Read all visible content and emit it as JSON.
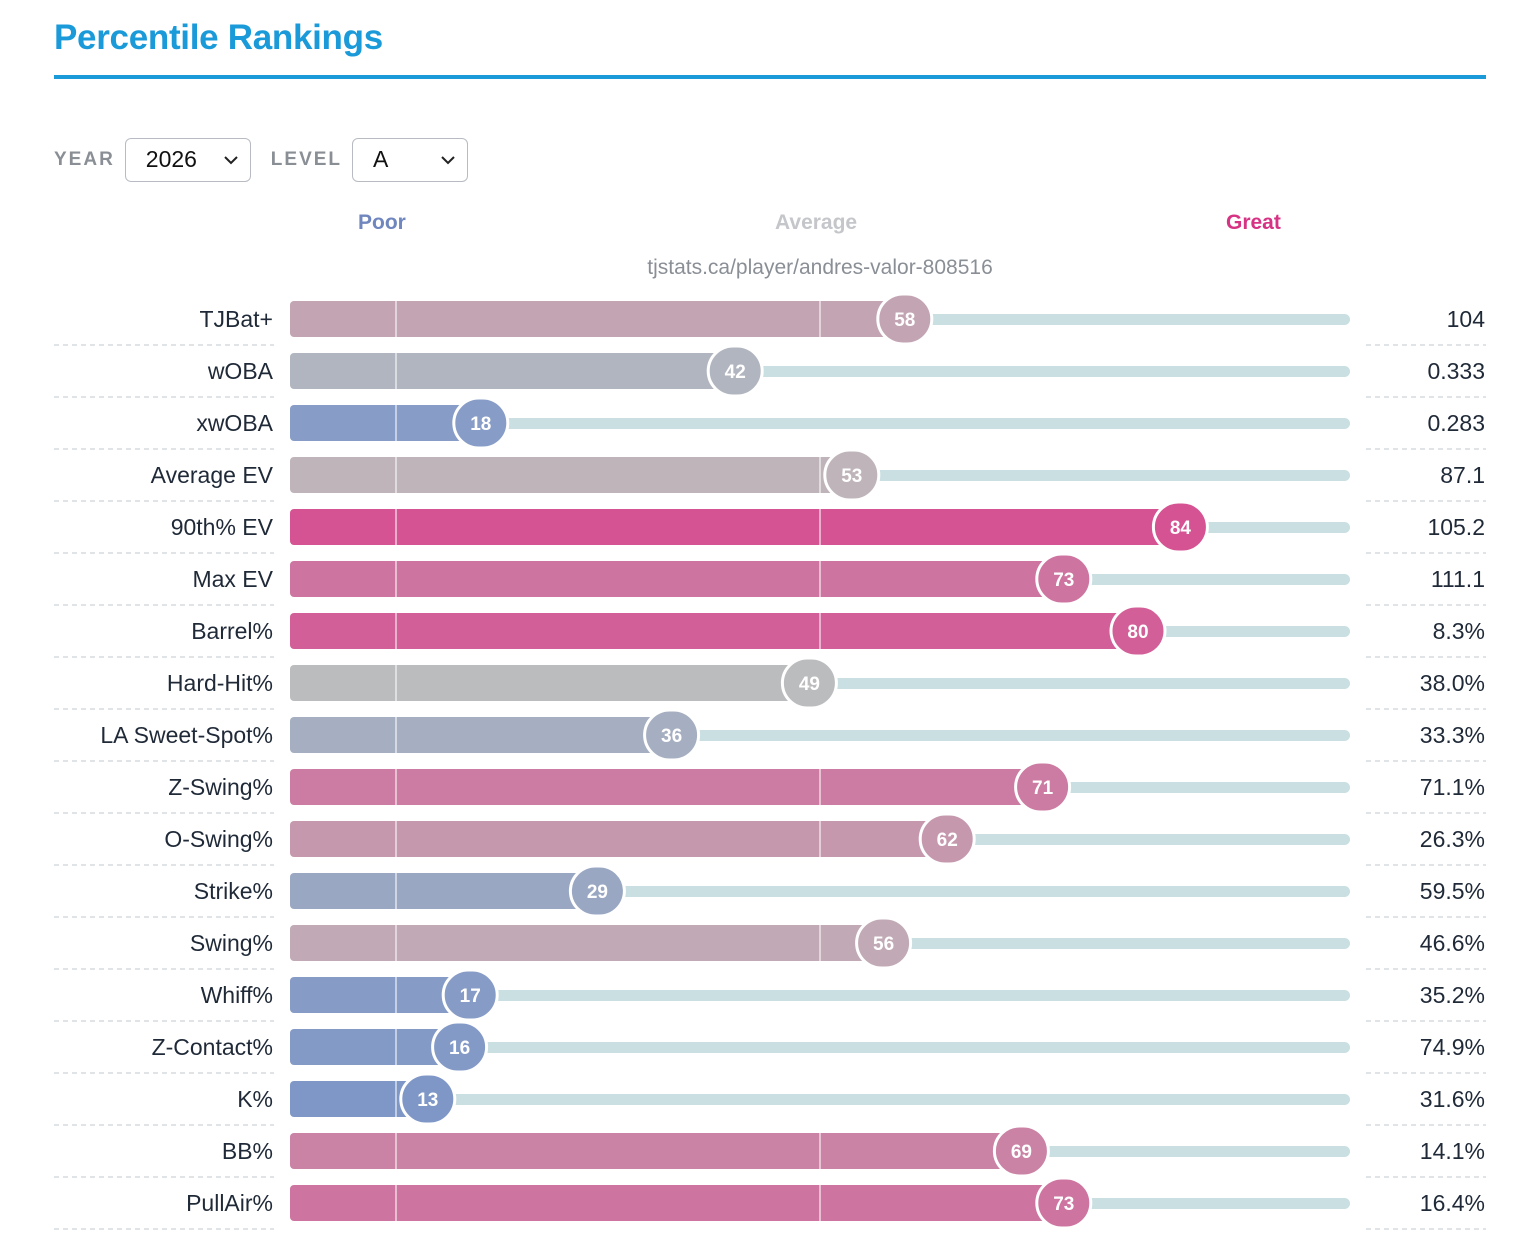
{
  "page": {
    "title": "Percentile Rankings",
    "year_label": "YEAR",
    "year_value": "2026",
    "level_label": "LEVEL",
    "level_value": "A",
    "legend": {
      "poor": "Poor",
      "average": "Average",
      "great": "Great"
    },
    "url": "tjstats.ca/player/andres-valor-808516"
  },
  "colors": {
    "title": "#1a9ad9",
    "poor": "#7a94c8",
    "average": "#bdbdbd",
    "great": "#d9408a",
    "legend_poor": "#6f86be",
    "legend_average": "#c4c6ca",
    "legend_great": "#d63384",
    "track": "#c9dfe2"
  },
  "chart_data": {
    "type": "bar",
    "title": "Percentile Rankings",
    "xlim": [
      0,
      100
    ],
    "grid": true,
    "reference_lines": [
      10,
      50
    ],
    "categories": [
      "TJBat+",
      "wOBA",
      "xwOBA",
      "Average EV",
      "90th% EV",
      "Max EV",
      "Barrel%",
      "Hard-Hit%",
      "LA Sweet-Spot%",
      "Z-Swing%",
      "O-Swing%",
      "Strike%",
      "Swing%",
      "Whiff%",
      "Z-Contact%",
      "K%",
      "BB%",
      "PullAir%"
    ],
    "values": [
      58,
      42,
      18,
      53,
      84,
      73,
      80,
      49,
      36,
      71,
      62,
      29,
      56,
      17,
      16,
      13,
      69,
      73
    ],
    "stat_values": [
      "104",
      "0.333",
      "0.283",
      "87.1",
      "105.2",
      "111.1",
      "8.3%",
      "38.0%",
      "33.3%",
      "71.1%",
      "26.3%",
      "59.5%",
      "46.6%",
      "35.2%",
      "74.9%",
      "31.6%",
      "14.1%",
      "16.4%"
    ]
  }
}
